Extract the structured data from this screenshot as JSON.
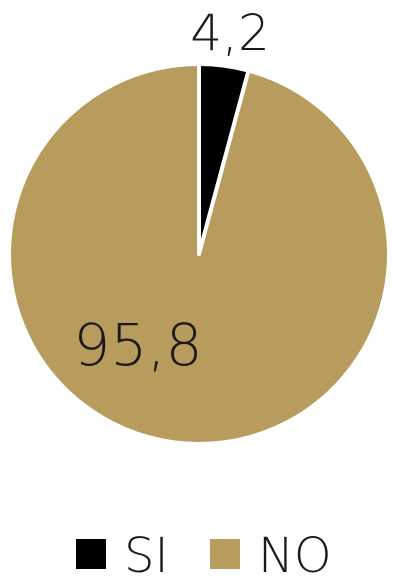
{
  "chart_data": {
    "type": "pie",
    "title": "",
    "slices": [
      {
        "label": "SI",
        "value": 4.2,
        "display": "4,2",
        "color": "#000000"
      },
      {
        "label": "NO",
        "value": 95.8,
        "display": "95,8",
        "color": "#b89c5d"
      }
    ],
    "start_angle_deg": 0,
    "direction": "clockwise",
    "legend_position": "bottom"
  }
}
